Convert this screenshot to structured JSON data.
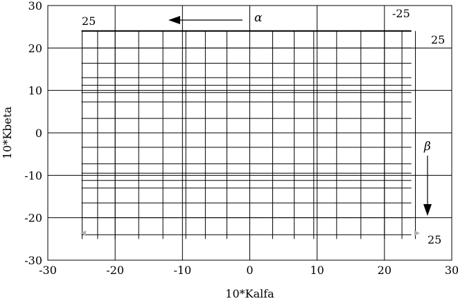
{
  "chart_data": {
    "type": "line",
    "title": "",
    "xlabel": "10*Kalfa",
    "ylabel": "10*Kbeta",
    "xlim": [
      -30,
      30
    ],
    "ylim": [
      -30,
      30
    ],
    "xticks": [
      -30,
      -20,
      -10,
      0,
      10,
      20,
      30
    ],
    "yticks": [
      -30,
      -20,
      -10,
      0,
      10,
      20,
      30
    ],
    "x_tick_labels": [
      "-30",
      "-20",
      "-10",
      "0",
      "10",
      "20",
      "30"
    ],
    "y_tick_labels": [
      "-30",
      "-20",
      "-10",
      "0",
      "10",
      "20",
      "30"
    ],
    "grid": true,
    "series": [
      {
        "family": "alpha_lines",
        "x": [
          -24.9,
          -22.6,
          -20.0,
          -16.5,
          -12.9,
          -9.5,
          -6.6,
          -3.4,
          0.0,
          3.4,
          6.6,
          9.5,
          12.9,
          16.5,
          20.0,
          22.6,
          24.6
        ],
        "y_range": [
          -25,
          24
        ]
      },
      {
        "family": "beta_lines",
        "y": [
          24.0,
          20.0,
          16.4,
          13.0,
          11.2,
          9.5,
          7.3,
          3.4,
          0.0,
          -3.4,
          -7.3,
          -9.5,
          -11.2,
          -13.0,
          -16.5,
          -20.0,
          -24.0
        ],
        "x_range": [
          -25,
          24
        ]
      }
    ],
    "annotations": {
      "alpha_label": "α",
      "beta_label": "β",
      "top_left": "25",
      "top_right": "-25",
      "right_top": "25",
      "right_bottom": "25"
    }
  }
}
